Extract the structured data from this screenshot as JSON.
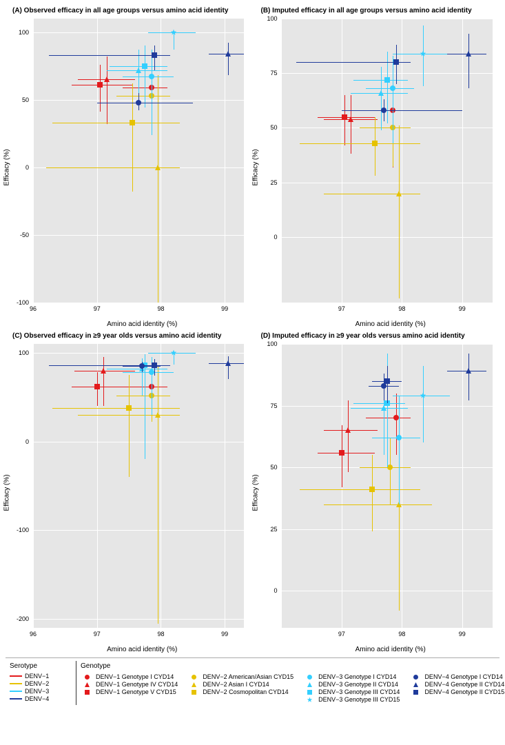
{
  "colors": {
    "DENV1": "#e31a1c",
    "DENV2": "#e6c200",
    "DENV3": "#33cfff",
    "DENV4": "#1f3b9b",
    "panel_bg": "#e6e6e6",
    "grid": "#ffffff"
  },
  "serotype_legend": {
    "title": "Serotype",
    "items": [
      {
        "label": "DENV−1",
        "color": "#e31a1c"
      },
      {
        "label": "DENV−2",
        "color": "#e6c200"
      },
      {
        "label": "DENV−3",
        "color": "#33cfff"
      },
      {
        "label": "DENV−4",
        "color": "#1f3b9b"
      }
    ]
  },
  "genotype_legend": {
    "title": "Genotype",
    "items": [
      {
        "label": "DENV−1 Genotype I CYD14",
        "color": "#e31a1c",
        "shape": "circle"
      },
      {
        "label": "DENV−1 Genotype IV CYD14",
        "color": "#e31a1c",
        "shape": "triangle"
      },
      {
        "label": "DENV−1 Genotype V CYD15",
        "color": "#e31a1c",
        "shape": "square"
      },
      {
        "label": "DENV−2 American/Asian CYD15",
        "color": "#e6c200",
        "shape": "circle"
      },
      {
        "label": "DENV−2 Asian I CYD14",
        "color": "#e6c200",
        "shape": "triangle"
      },
      {
        "label": "DENV−2 Cosmopolitan CYD14",
        "color": "#e6c200",
        "shape": "square"
      },
      {
        "label": "DENV−3 Genotype I CYD14",
        "color": "#33cfff",
        "shape": "circle"
      },
      {
        "label": "DENV−3 Genotype II CYD14",
        "color": "#33cfff",
        "shape": "triangle"
      },
      {
        "label": "DENV−3 Genotype III CYD14",
        "color": "#33cfff",
        "shape": "square"
      },
      {
        "label": "DENV−3 Genotype III CYD15",
        "color": "#33cfff",
        "shape": "star"
      },
      {
        "label": "DENV−4 Genotype I CYD14",
        "color": "#1f3b9b",
        "shape": "circle"
      },
      {
        "label": "DENV−4 Genotype II CYD14",
        "color": "#1f3b9b",
        "shape": "triangle"
      },
      {
        "label": "DENV−4 Genotype II CYD15",
        "color": "#1f3b9b",
        "shape": "square"
      }
    ]
  },
  "axis_label_x": "Amino acid identity (%)",
  "axis_label_y": "Efficacy (%)",
  "panels": [
    {
      "key": "A",
      "title": "(A)   Observed efficacy in all age groups versus amino acid identity",
      "xlim": [
        96,
        99.3
      ],
      "ylim": [
        -100,
        110
      ],
      "xticks": [
        96,
        97,
        98,
        99
      ],
      "yticks": [
        -100,
        -50,
        0,
        50,
        100
      ],
      "points": [
        {
          "color": "#e31a1c",
          "shape": "circle",
          "x": 97.85,
          "y": 59,
          "xlo": 97.4,
          "xhi": 98.1,
          "ylo": 28,
          "yhi": 79
        },
        {
          "color": "#e31a1c",
          "shape": "triangle",
          "x": 97.15,
          "y": 65,
          "xlo": 96.7,
          "xhi": 97.6,
          "ylo": 32,
          "yhi": 82
        },
        {
          "color": "#e31a1c",
          "shape": "square",
          "x": 97.05,
          "y": 61,
          "xlo": 96.6,
          "xhi": 97.55,
          "ylo": 41,
          "yhi": 76
        },
        {
          "color": "#e6c200",
          "shape": "circle",
          "x": 97.85,
          "y": 53,
          "xlo": 97.3,
          "xhi": 98.15,
          "ylo": 28,
          "yhi": 71
        },
        {
          "color": "#e6c200",
          "shape": "triangle",
          "x": 97.95,
          "y": 0,
          "xlo": 96.2,
          "xhi": 98.3,
          "ylo": -100,
          "yhi": 68
        },
        {
          "color": "#e6c200",
          "shape": "square",
          "x": 97.55,
          "y": 33,
          "xlo": 96.3,
          "xhi": 98.3,
          "ylo": -18,
          "yhi": 62
        },
        {
          "color": "#33cfff",
          "shape": "circle",
          "x": 97.85,
          "y": 67,
          "xlo": 97.4,
          "xhi": 98.2,
          "ylo": 24,
          "yhi": 87
        },
        {
          "color": "#33cfff",
          "shape": "triangle",
          "x": 97.65,
          "y": 72,
          "xlo": 97.15,
          "xhi": 98.1,
          "ylo": 45,
          "yhi": 87
        },
        {
          "color": "#33cfff",
          "shape": "square",
          "x": 97.75,
          "y": 75,
          "xlo": 97.2,
          "xhi": 98.1,
          "ylo": 44,
          "yhi": 90
        },
        {
          "color": "#33cfff",
          "shape": "star",
          "x": 98.2,
          "y": 100,
          "xlo": 97.8,
          "xhi": 98.55,
          "ylo": 87,
          "yhi": 100
        },
        {
          "color": "#1f3b9b",
          "shape": "circle",
          "x": 97.65,
          "y": 48,
          "xlo": 97.0,
          "xhi": 98.5,
          "ylo": 42,
          "yhi": 55
        },
        {
          "color": "#1f3b9b",
          "shape": "triangle",
          "x": 99.05,
          "y": 84,
          "xlo": 98.75,
          "xhi": 99.3,
          "ylo": 68,
          "yhi": 92
        },
        {
          "color": "#1f3b9b",
          "shape": "square",
          "x": 97.9,
          "y": 83,
          "xlo": 96.25,
          "xhi": 98.15,
          "ylo": 72,
          "yhi": 90
        }
      ]
    },
    {
      "key": "B",
      "title": "(B)   Imputed efficacy in all age groups versus amino acid identity",
      "xlim": [
        96,
        99.5
      ],
      "ylim": [
        -30,
        100
      ],
      "xticks": [
        97,
        98,
        99
      ],
      "yticks": [
        0,
        25,
        50,
        75,
        100
      ],
      "points": [
        {
          "color": "#e31a1c",
          "shape": "circle",
          "x": 97.85,
          "y": 58,
          "xlo": 97.4,
          "xhi": 98.1,
          "ylo": 32,
          "yhi": 73
        },
        {
          "color": "#e31a1c",
          "shape": "triangle",
          "x": 97.15,
          "y": 54,
          "xlo": 96.7,
          "xhi": 97.6,
          "ylo": 38,
          "yhi": 65
        },
        {
          "color": "#e31a1c",
          "shape": "square",
          "x": 97.05,
          "y": 55,
          "xlo": 96.6,
          "xhi": 97.55,
          "ylo": 42,
          "yhi": 65
        },
        {
          "color": "#e6c200",
          "shape": "circle",
          "x": 97.85,
          "y": 50,
          "xlo": 97.3,
          "xhi": 98.15,
          "ylo": 32,
          "yhi": 64
        },
        {
          "color": "#e6c200",
          "shape": "triangle",
          "x": 97.95,
          "y": 20,
          "xlo": 96.7,
          "xhi": 98.3,
          "ylo": -28,
          "yhi": 51
        },
        {
          "color": "#e6c200",
          "shape": "square",
          "x": 97.55,
          "y": 43,
          "xlo": 96.3,
          "xhi": 98.3,
          "ylo": 28,
          "yhi": 55
        },
        {
          "color": "#33cfff",
          "shape": "circle",
          "x": 97.85,
          "y": 68,
          "xlo": 97.4,
          "xhi": 98.2,
          "ylo": 43,
          "yhi": 83
        },
        {
          "color": "#33cfff",
          "shape": "triangle",
          "x": 97.65,
          "y": 66,
          "xlo": 97.15,
          "xhi": 98.1,
          "ylo": 49,
          "yhi": 78
        },
        {
          "color": "#33cfff",
          "shape": "square",
          "x": 97.75,
          "y": 72,
          "xlo": 97.2,
          "xhi": 98.1,
          "ylo": 52,
          "yhi": 85
        },
        {
          "color": "#33cfff",
          "shape": "star",
          "x": 98.35,
          "y": 84,
          "xlo": 97.85,
          "xhi": 98.8,
          "ylo": 69,
          "yhi": 97
        },
        {
          "color": "#1f3b9b",
          "shape": "circle",
          "x": 97.7,
          "y": 58,
          "xlo": 97.0,
          "xhi": 99.0,
          "ylo": 53,
          "yhi": 63
        },
        {
          "color": "#1f3b9b",
          "shape": "triangle",
          "x": 99.1,
          "y": 84,
          "xlo": 98.75,
          "xhi": 99.4,
          "ylo": 68,
          "yhi": 93
        },
        {
          "color": "#1f3b9b",
          "shape": "square",
          "x": 97.9,
          "y": 80,
          "xlo": 96.25,
          "xhi": 98.15,
          "ylo": 70,
          "yhi": 88
        }
      ]
    },
    {
      "key": "C",
      "title": "(C)   Observed efficacy in ≥9 year olds versus amino acid identity",
      "xlim": [
        96,
        99.3
      ],
      "ylim": [
        -210,
        110
      ],
      "xticks": [
        96,
        97,
        98,
        99
      ],
      "yticks": [
        -200,
        -100,
        0,
        100
      ],
      "points": [
        {
          "color": "#e31a1c",
          "shape": "circle",
          "x": 97.85,
          "y": 62,
          "xlo": 97.4,
          "xhi": 98.1,
          "ylo": 22,
          "yhi": 82
        },
        {
          "color": "#e31a1c",
          "shape": "triangle",
          "x": 97.1,
          "y": 80,
          "xlo": 96.65,
          "xhi": 97.6,
          "ylo": 40,
          "yhi": 95
        },
        {
          "color": "#e31a1c",
          "shape": "square",
          "x": 97.0,
          "y": 62,
          "xlo": 96.6,
          "xhi": 97.55,
          "ylo": 40,
          "yhi": 78
        },
        {
          "color": "#e6c200",
          "shape": "circle",
          "x": 97.85,
          "y": 52,
          "xlo": 97.3,
          "xhi": 98.15,
          "ylo": 22,
          "yhi": 72
        },
        {
          "color": "#e6c200",
          "shape": "triangle",
          "x": 97.95,
          "y": 30,
          "xlo": 96.7,
          "xhi": 98.3,
          "ylo": -205,
          "yhi": 85
        },
        {
          "color": "#e6c200",
          "shape": "square",
          "x": 97.5,
          "y": 38,
          "xlo": 96.3,
          "xhi": 98.3,
          "ylo": -40,
          "yhi": 75
        },
        {
          "color": "#33cfff",
          "shape": "circle",
          "x": 97.85,
          "y": 78,
          "xlo": 97.4,
          "xhi": 98.2,
          "ylo": 30,
          "yhi": 95
        },
        {
          "color": "#33cfff",
          "shape": "triangle",
          "x": 97.7,
          "y": 82,
          "xlo": 97.15,
          "xhi": 98.1,
          "ylo": 52,
          "yhi": 94
        },
        {
          "color": "#33cfff",
          "shape": "square",
          "x": 97.75,
          "y": 86,
          "xlo": 97.2,
          "xhi": 98.1,
          "ylo": -20,
          "yhi": 98
        },
        {
          "color": "#33cfff",
          "shape": "star",
          "x": 98.2,
          "y": 100,
          "xlo": 97.8,
          "xhi": 98.55,
          "ylo": 87,
          "yhi": 100
        },
        {
          "color": "#1f3b9b",
          "shape": "circle",
          "x": 97.7,
          "y": 85,
          "xlo": 97.4,
          "xhi": 98.0,
          "ylo": 78,
          "yhi": 90
        },
        {
          "color": "#1f3b9b",
          "shape": "triangle",
          "x": 99.05,
          "y": 88,
          "xlo": 98.75,
          "xhi": 99.3,
          "ylo": 70,
          "yhi": 96
        },
        {
          "color": "#1f3b9b",
          "shape": "square",
          "x": 97.9,
          "y": 86,
          "xlo": 96.25,
          "xhi": 98.15,
          "ylo": 74,
          "yhi": 93
        }
      ]
    },
    {
      "key": "D",
      "title": "(D)   Imputed efficacy in ≥9 year olds versus amino acid identity",
      "xlim": [
        96,
        99.5
      ],
      "ylim": [
        -15,
        100
      ],
      "xticks": [
        97,
        98,
        99
      ],
      "yticks": [
        0,
        25,
        50,
        75,
        100
      ],
      "points": [
        {
          "color": "#e31a1c",
          "shape": "circle",
          "x": 97.9,
          "y": 70,
          "xlo": 97.4,
          "xhi": 98.15,
          "ylo": 55,
          "yhi": 80
        },
        {
          "color": "#e31a1c",
          "shape": "triangle",
          "x": 97.1,
          "y": 65,
          "xlo": 96.7,
          "xhi": 97.6,
          "ylo": 48,
          "yhi": 77
        },
        {
          "color": "#e31a1c",
          "shape": "square",
          "x": 97.0,
          "y": 56,
          "xlo": 96.6,
          "xhi": 97.55,
          "ylo": 42,
          "yhi": 67
        },
        {
          "color": "#e6c200",
          "shape": "circle",
          "x": 97.8,
          "y": 50,
          "xlo": 97.3,
          "xhi": 98.15,
          "ylo": 35,
          "yhi": 62
        },
        {
          "color": "#e6c200",
          "shape": "triangle",
          "x": 97.95,
          "y": 35,
          "xlo": 96.7,
          "xhi": 98.5,
          "ylo": -8,
          "yhi": 60
        },
        {
          "color": "#e6c200",
          "shape": "square",
          "x": 97.5,
          "y": 41,
          "xlo": 96.3,
          "xhi": 98.3,
          "ylo": 24,
          "yhi": 55
        },
        {
          "color": "#33cfff",
          "shape": "circle",
          "x": 97.95,
          "y": 62,
          "xlo": 97.5,
          "xhi": 98.3,
          "ylo": 35,
          "yhi": 79
        },
        {
          "color": "#33cfff",
          "shape": "triangle",
          "x": 97.7,
          "y": 74,
          "xlo": 97.15,
          "xhi": 98.1,
          "ylo": 55,
          "yhi": 86
        },
        {
          "color": "#33cfff",
          "shape": "square",
          "x": 97.75,
          "y": 76,
          "xlo": 97.2,
          "xhi": 98.05,
          "ylo": 50,
          "yhi": 96
        },
        {
          "color": "#33cfff",
          "shape": "star",
          "x": 98.35,
          "y": 79,
          "xlo": 97.85,
          "xhi": 98.8,
          "ylo": 60,
          "yhi": 91
        },
        {
          "color": "#1f3b9b",
          "shape": "circle",
          "x": 97.7,
          "y": 83,
          "xlo": 97.45,
          "xhi": 97.95,
          "ylo": 77,
          "yhi": 88
        },
        {
          "color": "#1f3b9b",
          "shape": "triangle",
          "x": 99.1,
          "y": 89,
          "xlo": 98.75,
          "xhi": 99.4,
          "ylo": 77,
          "yhi": 96
        },
        {
          "color": "#1f3b9b",
          "shape": "square",
          "x": 97.75,
          "y": 85,
          "xlo": 97.5,
          "xhi": 98.0,
          "ylo": 76,
          "yhi": 91
        }
      ]
    }
  ]
}
